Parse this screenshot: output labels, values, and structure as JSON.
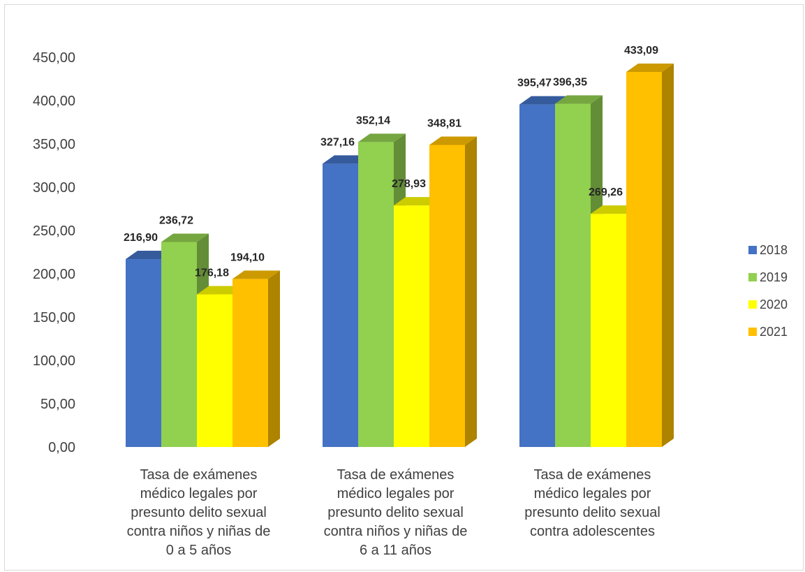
{
  "chart_data": {
    "type": "bar",
    "title": "",
    "xlabel": "",
    "ylabel": "",
    "ylim": [
      0,
      450
    ],
    "y_ticks": [
      "0,00",
      "50,00",
      "100,00",
      "150,00",
      "200,00",
      "250,00",
      "300,00",
      "350,00",
      "400,00",
      "450,00"
    ],
    "grid": false,
    "legend_position": "right",
    "three_d": true,
    "categories": [
      "Tasa de exámenes médico legales por presunto delito sexual contra niños y niñas de 0 a 5 años",
      "Tasa de exámenes médico legales por presunto delito sexual contra niños y niñas de 6 a 11 años",
      "Tasa de exámenes médico legales por presunto delito sexual contra adolescentes"
    ],
    "category_lines": [
      [
        "Tasa de exámenes",
        "médico legales por",
        "presunto delito sexual",
        "contra niños y niñas de",
        "0 a 5 años"
      ],
      [
        "Tasa de exámenes",
        "médico legales por",
        "presunto delito sexual",
        "contra niños y niñas de",
        "6 a 11 años"
      ],
      [
        "Tasa de exámenes",
        "médico legales por",
        "presunto delito sexual",
        "contra adolescentes"
      ]
    ],
    "series": [
      {
        "name": "2018",
        "color": "#4472C4",
        "values": [
          216.9,
          327.16,
          395.47
        ],
        "labels": [
          "216,90",
          "327,16",
          "395,47"
        ]
      },
      {
        "name": "2019",
        "color": "#92D050",
        "values": [
          236.72,
          352.14,
          396.35
        ],
        "labels": [
          "236,72",
          "352,14",
          "396,35"
        ]
      },
      {
        "name": "2020",
        "color": "#FFFF00",
        "values": [
          176.18,
          278.93,
          269.26
        ],
        "labels": [
          "176,18",
          "278,93",
          "269,26"
        ]
      },
      {
        "name": "2021",
        "color": "#FFC000",
        "values": [
          194.1,
          348.81,
          433.09
        ],
        "labels": [
          "194,10",
          "348,81",
          "433,09"
        ]
      }
    ]
  }
}
